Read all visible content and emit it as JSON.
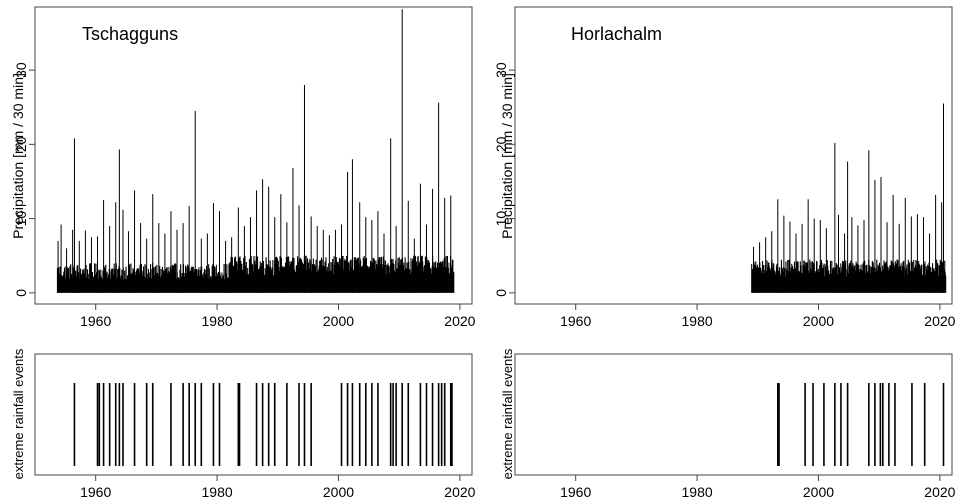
{
  "chart_data": [
    {
      "type": "bar",
      "panel": "precipitation",
      "station": "Tschagguns",
      "title": "Tschagguns",
      "ylabel": "Precipitation [mm / 30 min]",
      "xlim": [
        1950,
        2022
      ],
      "ylim": [
        -1.5,
        38.5
      ],
      "xticks": [
        1960,
        1980,
        2000,
        2020
      ],
      "yticks": [
        0,
        10,
        20,
        30
      ],
      "base_level": {
        "start": 1953.7,
        "end": 1982,
        "value": 4
      },
      "dense_base_level": {
        "start": 1982,
        "end": 2019,
        "value": 5
      },
      "peaks": [
        {
          "x": 1953.8,
          "y": 7
        },
        {
          "x": 1954.3,
          "y": 9.2
        },
        {
          "x": 1955.2,
          "y": 6
        },
        {
          "x": 1956.2,
          "y": 8.5
        },
        {
          "x": 1956.5,
          "y": 20.8
        },
        {
          "x": 1957.3,
          "y": 7
        },
        {
          "x": 1958.3,
          "y": 8.4
        },
        {
          "x": 1959.3,
          "y": 7.5
        },
        {
          "x": 1960.3,
          "y": 7.6
        },
        {
          "x": 1961.3,
          "y": 12.5
        },
        {
          "x": 1962.3,
          "y": 9
        },
        {
          "x": 1963.3,
          "y": 12.2
        },
        {
          "x": 1963.9,
          "y": 19.3
        },
        {
          "x": 1964.5,
          "y": 11.2
        },
        {
          "x": 1965.4,
          "y": 8.3
        },
        {
          "x": 1966.4,
          "y": 13.8
        },
        {
          "x": 1967.4,
          "y": 9.4
        },
        {
          "x": 1968.4,
          "y": 7.3
        },
        {
          "x": 1969.4,
          "y": 13.3
        },
        {
          "x": 1970.4,
          "y": 9.4
        },
        {
          "x": 1971.4,
          "y": 8
        },
        {
          "x": 1972.4,
          "y": 11
        },
        {
          "x": 1973.4,
          "y": 8.5
        },
        {
          "x": 1974.4,
          "y": 9.4
        },
        {
          "x": 1975.4,
          "y": 11.7
        },
        {
          "x": 1976.4,
          "y": 24.5
        },
        {
          "x": 1977.4,
          "y": 7.3
        },
        {
          "x": 1978.4,
          "y": 8
        },
        {
          "x": 1979.4,
          "y": 12.1
        },
        {
          "x": 1980.4,
          "y": 11
        },
        {
          "x": 1981.4,
          "y": 7
        },
        {
          "x": 1982.4,
          "y": 7.5
        },
        {
          "x": 1983.5,
          "y": 11.5
        },
        {
          "x": 1984.5,
          "y": 9
        },
        {
          "x": 1985.5,
          "y": 10.2
        },
        {
          "x": 1986.5,
          "y": 13.8
        },
        {
          "x": 1987.5,
          "y": 15.3
        },
        {
          "x": 1988.5,
          "y": 14.3
        },
        {
          "x": 1989.5,
          "y": 10.2
        },
        {
          "x": 1990.5,
          "y": 13.3
        },
        {
          "x": 1991.5,
          "y": 9.5
        },
        {
          "x": 1992.5,
          "y": 16.8
        },
        {
          "x": 1993.5,
          "y": 11.8
        },
        {
          "x": 1994.4,
          "y": 28
        },
        {
          "x": 1995.5,
          "y": 10.3
        },
        {
          "x": 1996.5,
          "y": 9
        },
        {
          "x": 1997.5,
          "y": 8.5
        },
        {
          "x": 1998.5,
          "y": 7.8
        },
        {
          "x": 1999.5,
          "y": 8.5
        },
        {
          "x": 2000.5,
          "y": 9.2
        },
        {
          "x": 2001.5,
          "y": 16.3
        },
        {
          "x": 2002.3,
          "y": 18
        },
        {
          "x": 2003.5,
          "y": 12.2
        },
        {
          "x": 2004.5,
          "y": 10.2
        },
        {
          "x": 2005.5,
          "y": 9.8
        },
        {
          "x": 2006.5,
          "y": 11
        },
        {
          "x": 2007.5,
          "y": 8
        },
        {
          "x": 2008.6,
          "y": 20.8
        },
        {
          "x": 2009.5,
          "y": 9
        },
        {
          "x": 2010.5,
          "y": 38.2
        },
        {
          "x": 2011.5,
          "y": 12.4
        },
        {
          "x": 2012.5,
          "y": 7.3
        },
        {
          "x": 2013.5,
          "y": 14.7
        },
        {
          "x": 2014.5,
          "y": 9.2
        },
        {
          "x": 2015.5,
          "y": 14
        },
        {
          "x": 2016.5,
          "y": 25.6
        },
        {
          "x": 2017.5,
          "y": 12.8
        },
        {
          "x": 2018.5,
          "y": 13.1
        }
      ]
    },
    {
      "type": "bar",
      "panel": "precipitation",
      "station": "Horlachalm",
      "title": "Horlachalm",
      "ylabel": "Precipitation [mm / 30 min]",
      "xlim": [
        1950,
        2022
      ],
      "ylim": [
        -1.5,
        38.5
      ],
      "xticks": [
        1960,
        1980,
        2000,
        2020
      ],
      "yticks": [
        0,
        10,
        20,
        30
      ],
      "dense_base_level": {
        "start": 1989,
        "end": 2021,
        "value": 4.5
      },
      "peaks": [
        {
          "x": 1989.3,
          "y": 6.2
        },
        {
          "x": 1990.3,
          "y": 6.8
        },
        {
          "x": 1991.3,
          "y": 7.5
        },
        {
          "x": 1992.3,
          "y": 8.3
        },
        {
          "x": 1993.3,
          "y": 12.6
        },
        {
          "x": 1994.3,
          "y": 10.4
        },
        {
          "x": 1995.3,
          "y": 9.6
        },
        {
          "x": 1996.3,
          "y": 8
        },
        {
          "x": 1997.3,
          "y": 9.3
        },
        {
          "x": 1998.3,
          "y": 12.6
        },
        {
          "x": 1999.3,
          "y": 10
        },
        {
          "x": 2000.3,
          "y": 9.8
        },
        {
          "x": 2001.3,
          "y": 8.7
        },
        {
          "x": 2002.7,
          "y": 20.2
        },
        {
          "x": 2003.3,
          "y": 10.5
        },
        {
          "x": 2004.3,
          "y": 8
        },
        {
          "x": 2004.8,
          "y": 17.7
        },
        {
          "x": 2005.5,
          "y": 10.2
        },
        {
          "x": 2006.5,
          "y": 9.1
        },
        {
          "x": 2007.5,
          "y": 9.8
        },
        {
          "x": 2008.3,
          "y": 19.2
        },
        {
          "x": 2009.3,
          "y": 15.2
        },
        {
          "x": 2010.3,
          "y": 15.6
        },
        {
          "x": 2011.3,
          "y": 9.5
        },
        {
          "x": 2012.3,
          "y": 13.2
        },
        {
          "x": 2013.3,
          "y": 9.3
        },
        {
          "x": 2014.3,
          "y": 12.8
        },
        {
          "x": 2015.3,
          "y": 10.3
        },
        {
          "x": 2016.3,
          "y": 10.6
        },
        {
          "x": 2017.3,
          "y": 10.2
        },
        {
          "x": 2018.3,
          "y": 8
        },
        {
          "x": 2019.3,
          "y": 13.2
        },
        {
          "x": 2020.3,
          "y": 12.2
        },
        {
          "x": 2020.6,
          "y": 25.5
        }
      ]
    },
    {
      "type": "bar",
      "panel": "events",
      "station": "Tschagguns",
      "ylabel": "extreme rainfall events",
      "xlim": [
        1950,
        2022
      ],
      "xticks": [
        1960,
        1980,
        2000,
        2020
      ],
      "events": [
        1956.5,
        1960.3,
        1960.6,
        1961.3,
        1962.3,
        1963.3,
        1963.9,
        1964.5,
        1966.4,
        1968.4,
        1969.4,
        1972.4,
        1974.4,
        1975.4,
        1976.4,
        1977.4,
        1979.4,
        1980.4,
        1983.5,
        1983.7,
        1986.5,
        1987.5,
        1988.5,
        1989.5,
        1991.5,
        1993.5,
        1994.4,
        1995.5,
        2000.5,
        2001.5,
        2002.3,
        2003.5,
        2004.5,
        2005.5,
        2006.5,
        2008.6,
        2009.0,
        2009.5,
        2010.5,
        2011.5,
        2013.5,
        2014.5,
        2015.5,
        2016.5,
        2017.0,
        2017.5,
        2018.5,
        2018.7
      ]
    },
    {
      "type": "bar",
      "panel": "events",
      "station": "Horlachalm",
      "ylabel": "extreme rainfall events",
      "xlim": [
        1950,
        2022
      ],
      "xticks": [
        1960,
        1980,
        2000,
        2020
      ],
      "events": [
        1993.3,
        1993.5,
        1997.8,
        1999.1,
        2000.9,
        2002.7,
        2003.7,
        2004.8,
        2008.3,
        2009.3,
        2010.2,
        2010.6,
        2011.6,
        2012.6,
        2015.4,
        2017.5,
        2020.6
      ]
    }
  ]
}
